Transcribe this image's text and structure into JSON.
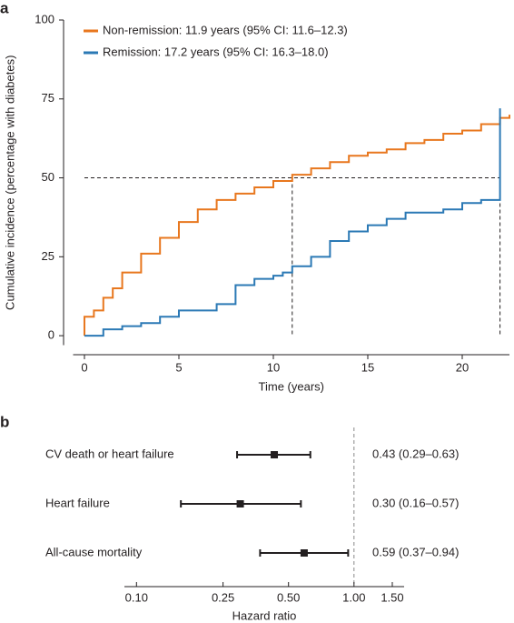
{
  "chart_data": [
    {
      "type": "line",
      "panel": "a",
      "step": true,
      "ylabel": "Cumulative incidence (percentage with diabetes)",
      "xlabel": "Time (years)",
      "xlim": [
        -0.6,
        22.5
      ],
      "ylim": [
        -3,
        100
      ],
      "xticks": [
        0,
        5,
        10,
        15,
        20
      ],
      "yticks": [
        0,
        25,
        50,
        75,
        100
      ],
      "median_lines": {
        "y": 50,
        "x": [
          11,
          22
        ]
      },
      "series": [
        {
          "name": "Non-remission: 11.9 years (95% CI: 11.6–12.3)",
          "color": "#e8771e",
          "x": [
            0,
            0,
            0.5,
            1,
            1.5,
            2,
            3,
            4,
            5,
            6,
            7,
            8,
            9,
            10,
            11,
            12,
            13,
            14,
            15,
            16,
            17,
            18,
            19,
            20,
            21,
            22,
            22.5
          ],
          "values": [
            0,
            6,
            8,
            12,
            15,
            20,
            26,
            31,
            36,
            40,
            43,
            45,
            47,
            49,
            51,
            53,
            55,
            57,
            58,
            59,
            61,
            62,
            64,
            65,
            67,
            69,
            70
          ]
        },
        {
          "name": "Remission: 17.2 years (95% CI: 16.3–18.0)",
          "color": "#2b79b5",
          "x": [
            0,
            0.5,
            1,
            2,
            3,
            4,
            5,
            6,
            7,
            8,
            9,
            10,
            10.5,
            11,
            12,
            13,
            14,
            15,
            16,
            17,
            18,
            19,
            20,
            21,
            22,
            22
          ],
          "values": [
            0,
            0,
            2,
            3,
            4,
            6,
            8,
            8,
            10,
            16,
            18,
            19,
            20,
            22,
            25,
            30,
            33,
            35,
            37,
            39,
            39,
            40,
            42,
            43,
            43,
            72
          ]
        }
      ]
    },
    {
      "type": "forest",
      "panel": "b",
      "xlabel": "Hazard ratio",
      "log_x": true,
      "reference": 1,
      "xlim": [
        0.088,
        1.7
      ],
      "xticks": [
        {
          "value": 0.1,
          "label": "0.10"
        },
        {
          "value": 0.25,
          "label": "0.25"
        },
        {
          "value": 0.5,
          "label": "0.50"
        },
        {
          "value": 1,
          "label": "1.00"
        },
        {
          "value": 1.5,
          "label": "1.50"
        }
      ],
      "categories": [
        "CV death or heart failure",
        "Heart failure",
        "All-cause mortality"
      ],
      "values": [
        0.43,
        0.3,
        0.59
      ],
      "ci_low": [
        0.29,
        0.16,
        0.37
      ],
      "ci_high": [
        0.63,
        0.57,
        0.94
      ],
      "value_labels": [
        "0.43 (0.29–0.63)",
        "0.30 (0.16–0.57)",
        "0.59 (0.37–0.94)"
      ]
    }
  ]
}
